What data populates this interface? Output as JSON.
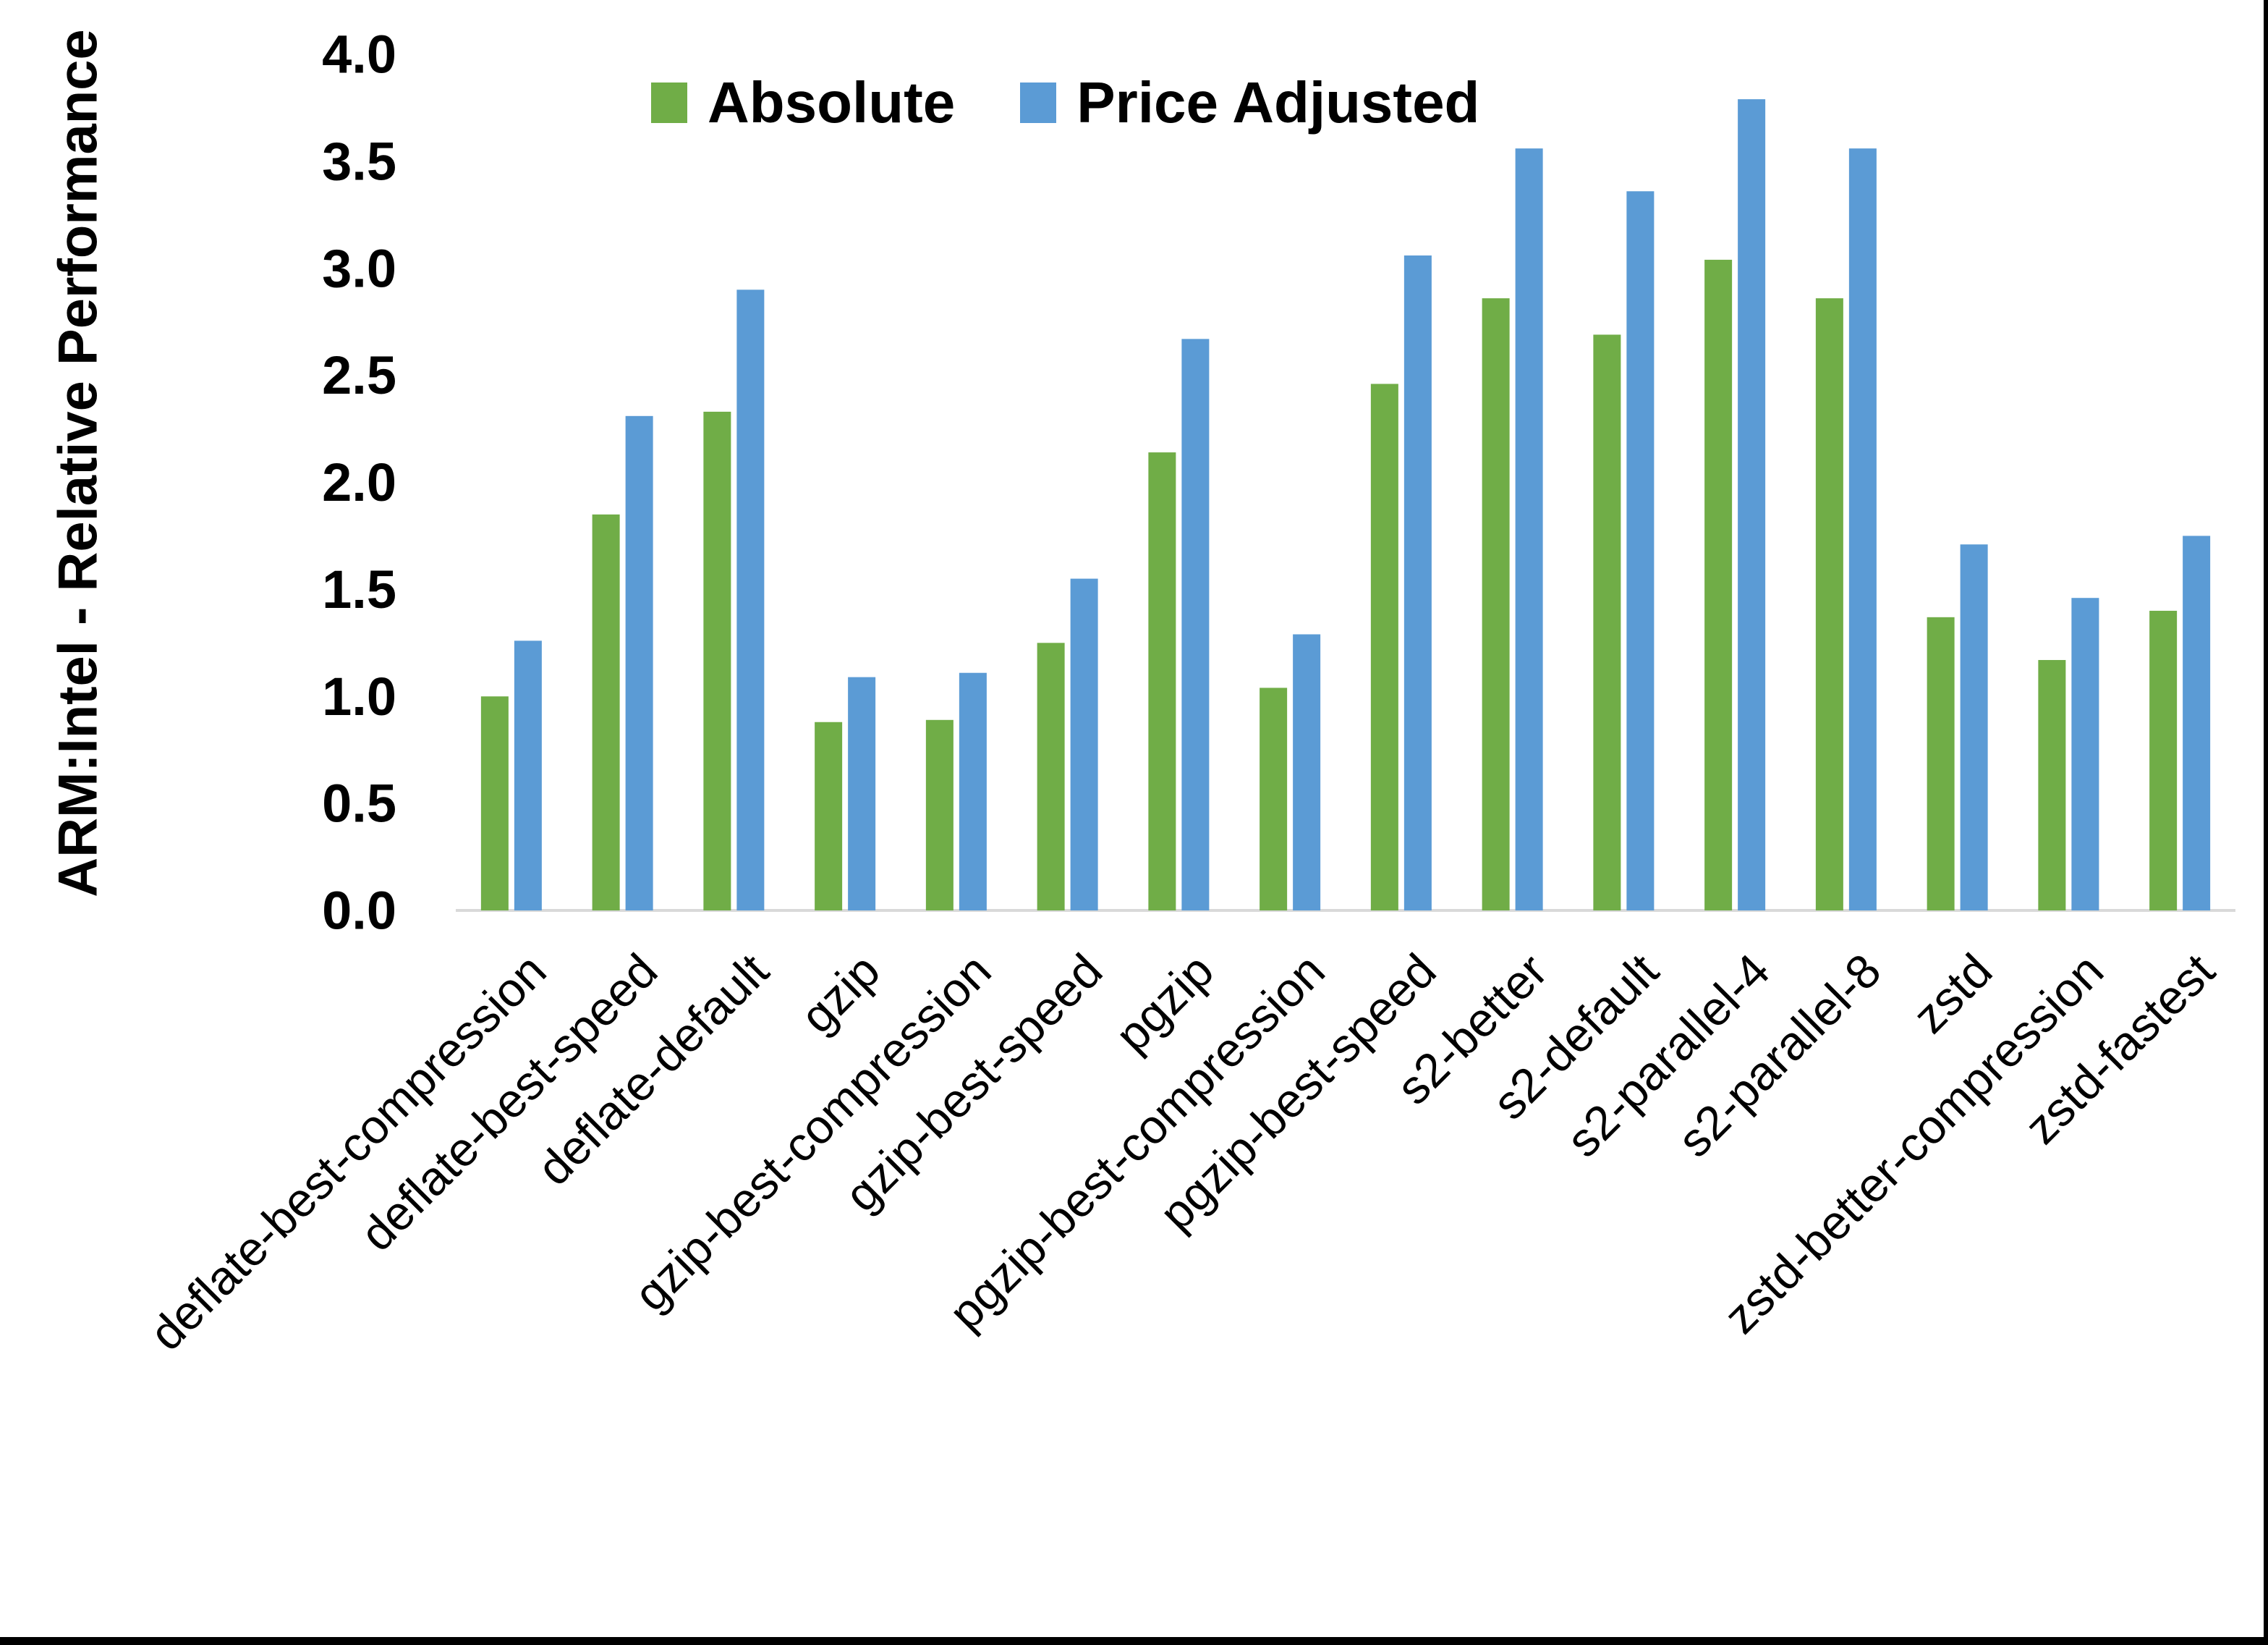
{
  "chart_data": {
    "type": "bar",
    "title": "",
    "xlabel": "",
    "ylabel": "ARM:Intel - Relative Performance",
    "ylim": [
      0.0,
      4.0
    ],
    "ytick_step": 0.5,
    "ytick_labels": [
      "0.0",
      "0.5",
      "1.0",
      "1.5",
      "2.0",
      "2.5",
      "3.0",
      "3.5",
      "4.0"
    ],
    "grid": false,
    "legend_position": "top-center",
    "categories": [
      "deflate-best-compression",
      "deflate-best-speed",
      "deflate-default",
      "gzip",
      "gzip-best-compression",
      "gzip-best-speed",
      "pgzip",
      "pgzip-best-compression",
      "pgzip-best-speed",
      "s2-better",
      "s2-default",
      "s2-parallel-4",
      "s2-parallel-8",
      "zstd",
      "zstd-better-compression",
      "zstd-fastest"
    ],
    "series": [
      {
        "name": "Absolute",
        "color": "#70AD47",
        "values": [
          1.0,
          1.85,
          2.33,
          0.88,
          0.89,
          1.25,
          2.14,
          1.04,
          2.46,
          2.86,
          2.69,
          3.04,
          2.86,
          1.37,
          1.17,
          1.4
        ]
      },
      {
        "name": "Price Adjusted",
        "color": "#5B9BD5",
        "values": [
          1.26,
          2.31,
          2.9,
          1.09,
          1.11,
          1.55,
          2.67,
          1.29,
          3.06,
          3.56,
          3.36,
          3.79,
          3.56,
          1.71,
          1.46,
          1.75
        ]
      }
    ],
    "axis_line_color": "#D9D9D9",
    "text_color": "#000000"
  },
  "frame": {
    "border_color": "#000000"
  }
}
